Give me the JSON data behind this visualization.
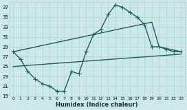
{
  "xlabel": "Humidex (Indice chaleur)",
  "background_color": "#cce8e8",
  "grid_color": "#aad0d0",
  "line_color": "#1a6060",
  "xlim": [
    0,
    23
  ],
  "ylim": [
    19,
    38
  ],
  "xticks": [
    0,
    1,
    2,
    3,
    4,
    5,
    6,
    7,
    8,
    9,
    10,
    11,
    12,
    13,
    14,
    15,
    16,
    17,
    18,
    19,
    20,
    21,
    22,
    23
  ],
  "yticks": [
    19,
    21,
    23,
    25,
    27,
    29,
    31,
    33,
    35,
    37
  ],
  "series1_x": [
    0,
    1,
    2,
    3,
    4,
    5,
    6,
    7,
    8,
    9,
    10,
    11,
    12,
    13,
    14,
    15,
    16,
    17,
    18,
    19,
    20,
    21,
    22,
    23
  ],
  "series1_y": [
    28,
    26.5,
    24,
    22.5,
    21.5,
    21,
    20,
    20,
    24,
    23.5,
    28,
    31.5,
    32.5,
    35.5,
    37.5,
    37,
    36,
    35,
    33.5,
    29,
    29,
    28.5,
    28,
    28
  ],
  "series2_x": [
    0,
    19,
    20,
    23
  ],
  "series2_y": [
    28,
    34,
    29,
    28
  ],
  "series3_x": [
    0,
    23
  ],
  "series3_y": [
    25,
    27.5
  ],
  "marker": "+",
  "markersize": 4,
  "linewidth": 1.0
}
